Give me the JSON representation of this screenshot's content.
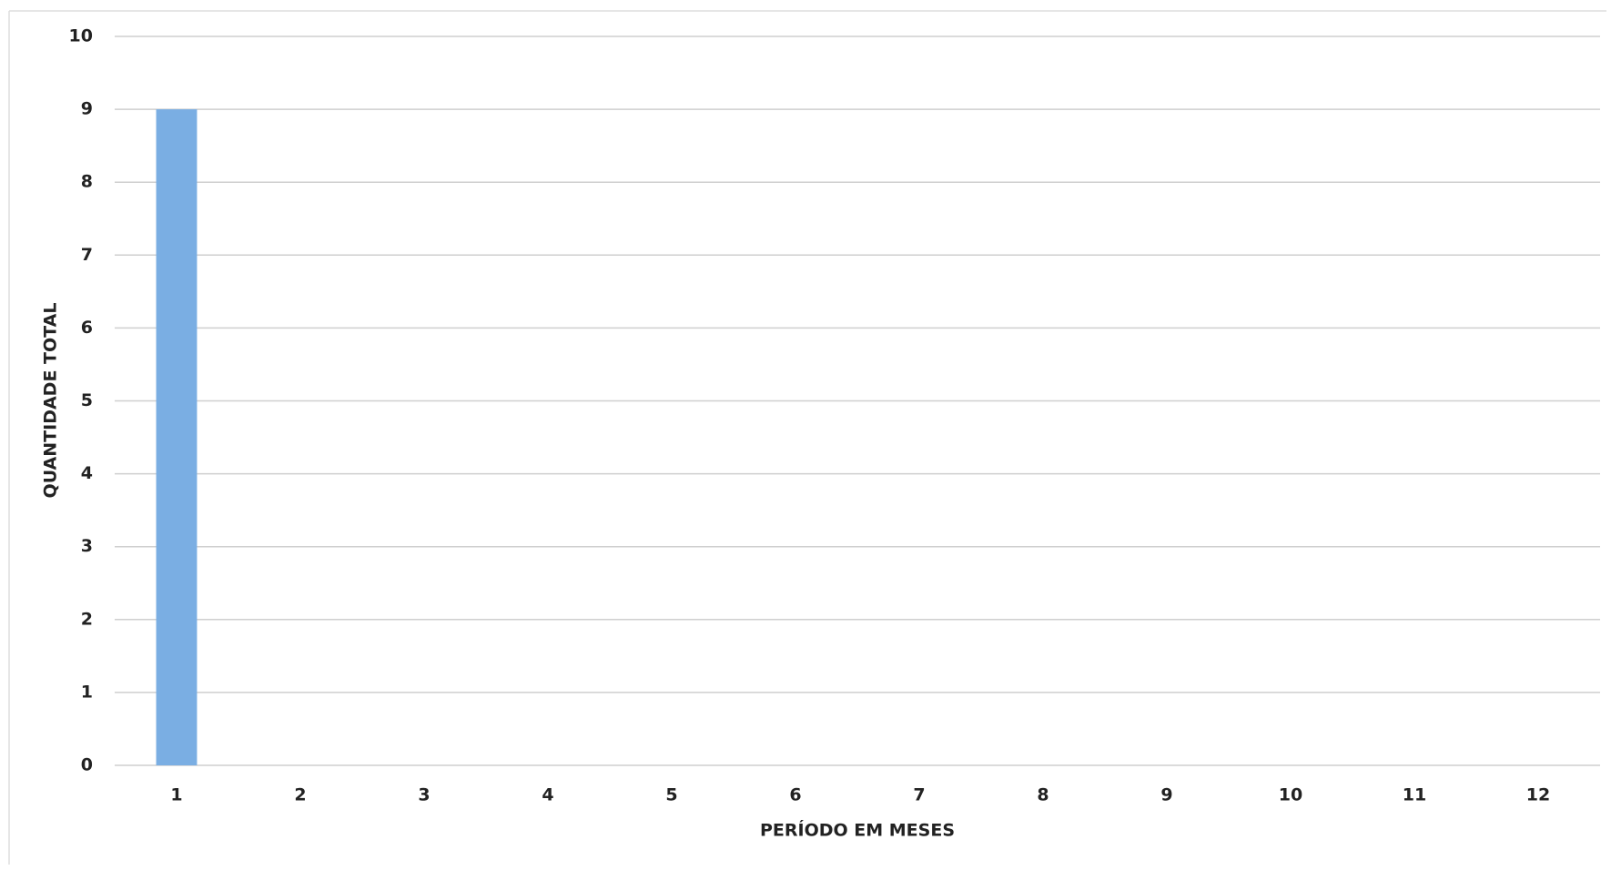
{
  "chart_data": {
    "type": "bar",
    "categories": [
      "1",
      "2",
      "3",
      "4",
      "5",
      "6",
      "7",
      "8",
      "9",
      "10",
      "11",
      "12"
    ],
    "values": [
      9,
      0,
      0,
      0,
      0,
      0,
      0,
      0,
      0,
      0,
      0,
      0
    ],
    "color": "#7aaee3",
    "x_label": "PERÍODO EM MESES",
    "y_label": "QUANTIDADE TOTAL",
    "ylim": [
      0,
      10
    ],
    "yticks": [
      0,
      1,
      2,
      3,
      4,
      5,
      6,
      7,
      8,
      9,
      10
    ],
    "grid": true
  }
}
